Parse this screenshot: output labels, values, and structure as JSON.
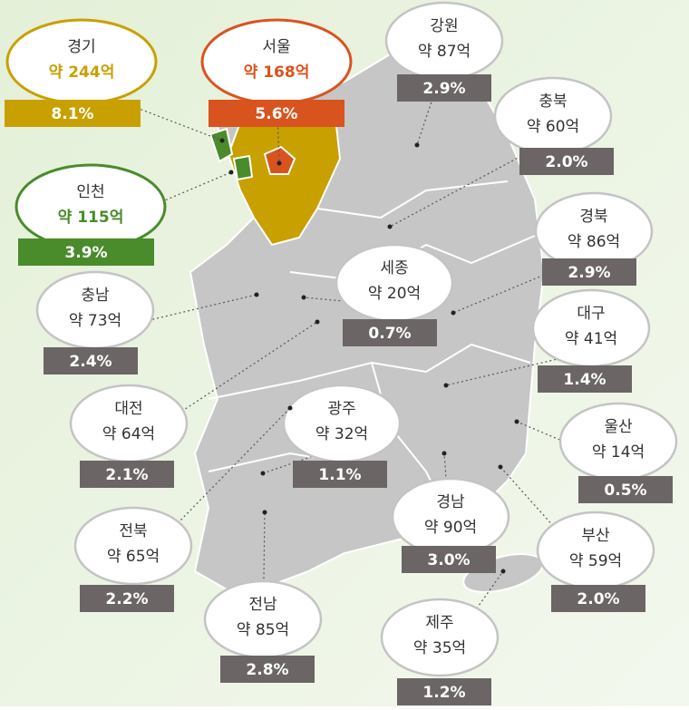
{
  "regions": [
    {
      "name": "경기",
      "amount": "약 244억",
      "share": "8.1%"
    },
    {
      "name": "서울",
      "amount": "약 168억",
      "share": "5.6%"
    },
    {
      "name": "인천",
      "amount": "약 115억",
      "share": "3.9%"
    },
    {
      "name": "강원",
      "amount": "약 87억",
      "share": "2.9%"
    },
    {
      "name": "충북",
      "amount": "약 60억",
      "share": "2.0%"
    },
    {
      "name": "경북",
      "amount": "약 86억",
      "share": "2.9%"
    },
    {
      "name": "세종",
      "amount": "약 20억",
      "share": "0.7%"
    },
    {
      "name": "충남",
      "amount": "약 73억",
      "share": "2.4%"
    },
    {
      "name": "대구",
      "amount": "약 41억",
      "share": "1.4%"
    },
    {
      "name": "대전",
      "amount": "약 64억",
      "share": "2.1%"
    },
    {
      "name": "광주",
      "amount": "약 32억",
      "share": "1.1%"
    },
    {
      "name": "울산",
      "amount": "약 14억",
      "share": "0.5%"
    },
    {
      "name": "경남",
      "amount": "약 90억",
      "share": "3.0%"
    },
    {
      "name": "부산",
      "amount": "약 59억",
      "share": "2.0%"
    },
    {
      "name": "전북",
      "amount": "약 65억",
      "share": "2.2%"
    },
    {
      "name": "전남",
      "amount": "약 85억",
      "share": "2.8%"
    },
    {
      "name": "제주",
      "amount": "약 35억",
      "share": "1.2%"
    }
  ]
}
